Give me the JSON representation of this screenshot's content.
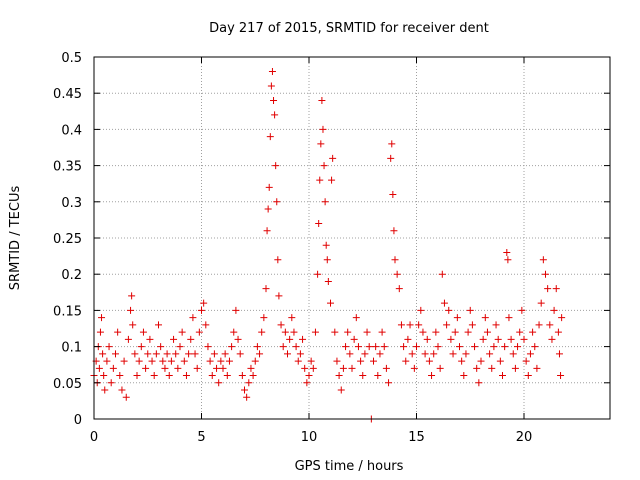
{
  "chart_data": {
    "type": "scatter",
    "title": "Day 217 of 2015, SRMTID for receiver dent",
    "xlabel": "GPS time / hours",
    "ylabel": "SRMTID / TECUs",
    "xlim": [
      0,
      24
    ],
    "ylim": [
      0,
      0.5
    ],
    "x_ticks": [
      0,
      5,
      10,
      15,
      20
    ],
    "x_tick_labels": [
      "0",
      "5",
      "10",
      "15",
      "20"
    ],
    "y_ticks": [
      0,
      0.05,
      0.1,
      0.15,
      0.2,
      0.25,
      0.3,
      0.35,
      0.4,
      0.45,
      0.5
    ],
    "y_tick_labels": [
      "0",
      "0.05",
      "0.1",
      "0.15",
      "0.2",
      "0.25",
      "0.3",
      "0.35",
      "0.4",
      "0.45",
      "0.5"
    ],
    "grid": true,
    "marker": "plus",
    "color": "#e00000",
    "series": [
      {
        "name": "SRMTID",
        "points": [
          [
            0.0,
            0.06
          ],
          [
            0.1,
            0.08
          ],
          [
            0.15,
            0.05
          ],
          [
            0.2,
            0.1
          ],
          [
            0.25,
            0.07
          ],
          [
            0.3,
            0.12
          ],
          [
            0.35,
            0.14
          ],
          [
            0.4,
            0.09
          ],
          [
            0.45,
            0.06
          ],
          [
            0.5,
            0.04
          ],
          [
            0.6,
            0.08
          ],
          [
            0.7,
            0.1
          ],
          [
            0.8,
            0.05
          ],
          [
            0.9,
            0.07
          ],
          [
            1.0,
            0.09
          ],
          [
            1.1,
            0.12
          ],
          [
            1.2,
            0.06
          ],
          [
            1.3,
            0.04
          ],
          [
            1.4,
            0.08
          ],
          [
            1.5,
            0.03
          ],
          [
            1.6,
            0.11
          ],
          [
            1.7,
            0.15
          ],
          [
            1.75,
            0.17
          ],
          [
            1.8,
            0.13
          ],
          [
            1.9,
            0.09
          ],
          [
            2.0,
            0.06
          ],
          [
            2.1,
            0.08
          ],
          [
            2.2,
            0.1
          ],
          [
            2.3,
            0.12
          ],
          [
            2.4,
            0.07
          ],
          [
            2.5,
            0.09
          ],
          [
            2.6,
            0.11
          ],
          [
            2.7,
            0.08
          ],
          [
            2.8,
            0.06
          ],
          [
            2.9,
            0.09
          ],
          [
            3.0,
            0.13
          ],
          [
            3.1,
            0.1
          ],
          [
            3.2,
            0.08
          ],
          [
            3.3,
            0.07
          ],
          [
            3.4,
            0.09
          ],
          [
            3.5,
            0.06
          ],
          [
            3.6,
            0.08
          ],
          [
            3.7,
            0.11
          ],
          [
            3.8,
            0.09
          ],
          [
            3.9,
            0.07
          ],
          [
            4.0,
            0.1
          ],
          [
            4.1,
            0.12
          ],
          [
            4.2,
            0.08
          ],
          [
            4.3,
            0.06
          ],
          [
            4.4,
            0.09
          ],
          [
            4.5,
            0.11
          ],
          [
            4.6,
            0.14
          ],
          [
            4.7,
            0.09
          ],
          [
            4.8,
            0.07
          ],
          [
            4.9,
            0.12
          ],
          [
            5.0,
            0.15
          ],
          [
            5.1,
            0.16
          ],
          [
            5.2,
            0.13
          ],
          [
            5.3,
            0.1
          ],
          [
            5.4,
            0.08
          ],
          [
            5.5,
            0.06
          ],
          [
            5.6,
            0.09
          ],
          [
            5.7,
            0.07
          ],
          [
            5.8,
            0.05
          ],
          [
            5.9,
            0.08
          ],
          [
            6.0,
            0.07
          ],
          [
            6.1,
            0.09
          ],
          [
            6.2,
            0.06
          ],
          [
            6.3,
            0.08
          ],
          [
            6.4,
            0.1
          ],
          [
            6.5,
            0.12
          ],
          [
            6.6,
            0.15
          ],
          [
            6.7,
            0.11
          ],
          [
            6.8,
            0.09
          ],
          [
            6.9,
            0.06
          ],
          [
            7.0,
            0.04
          ],
          [
            7.1,
            0.03
          ],
          [
            7.2,
            0.05
          ],
          [
            7.3,
            0.07
          ],
          [
            7.4,
            0.06
          ],
          [
            7.5,
            0.08
          ],
          [
            7.6,
            0.1
          ],
          [
            7.7,
            0.09
          ],
          [
            7.8,
            0.12
          ],
          [
            7.9,
            0.14
          ],
          [
            8.0,
            0.18
          ],
          [
            8.05,
            0.26
          ],
          [
            8.1,
            0.29
          ],
          [
            8.15,
            0.32
          ],
          [
            8.2,
            0.39
          ],
          [
            8.25,
            0.46
          ],
          [
            8.3,
            0.48
          ],
          [
            8.35,
            0.44
          ],
          [
            8.4,
            0.42
          ],
          [
            8.45,
            0.35
          ],
          [
            8.5,
            0.3
          ],
          [
            8.55,
            0.22
          ],
          [
            8.6,
            0.17
          ],
          [
            8.7,
            0.13
          ],
          [
            8.8,
            0.1
          ],
          [
            8.9,
            0.12
          ],
          [
            9.0,
            0.09
          ],
          [
            9.1,
            0.11
          ],
          [
            9.2,
            0.14
          ],
          [
            9.3,
            0.12
          ],
          [
            9.4,
            0.1
          ],
          [
            9.5,
            0.08
          ],
          [
            9.6,
            0.09
          ],
          [
            9.7,
            0.11
          ],
          [
            9.8,
            0.07
          ],
          [
            9.9,
            0.05
          ],
          [
            10.0,
            0.06
          ],
          [
            10.1,
            0.08
          ],
          [
            10.2,
            0.07
          ],
          [
            10.3,
            0.12
          ],
          [
            10.4,
            0.2
          ],
          [
            10.45,
            0.27
          ],
          [
            10.5,
            0.33
          ],
          [
            10.55,
            0.38
          ],
          [
            10.6,
            0.44
          ],
          [
            10.65,
            0.4
          ],
          [
            10.7,
            0.35
          ],
          [
            10.75,
            0.3
          ],
          [
            10.8,
            0.24
          ],
          [
            10.85,
            0.22
          ],
          [
            10.9,
            0.19
          ],
          [
            11.0,
            0.16
          ],
          [
            11.05,
            0.33
          ],
          [
            11.1,
            0.36
          ],
          [
            11.2,
            0.12
          ],
          [
            11.3,
            0.08
          ],
          [
            11.4,
            0.06
          ],
          [
            11.5,
            0.04
          ],
          [
            11.6,
            0.07
          ],
          [
            11.7,
            0.1
          ],
          [
            11.8,
            0.12
          ],
          [
            11.9,
            0.09
          ],
          [
            12.0,
            0.07
          ],
          [
            12.1,
            0.11
          ],
          [
            12.2,
            0.14
          ],
          [
            12.3,
            0.1
          ],
          [
            12.4,
            0.08
          ],
          [
            12.5,
            0.06
          ],
          [
            12.6,
            0.09
          ],
          [
            12.7,
            0.12
          ],
          [
            12.8,
            0.1
          ],
          [
            12.9,
            0.0
          ],
          [
            13.0,
            0.08
          ],
          [
            13.1,
            0.1
          ],
          [
            13.2,
            0.06
          ],
          [
            13.3,
            0.09
          ],
          [
            13.4,
            0.12
          ],
          [
            13.5,
            0.1
          ],
          [
            13.6,
            0.07
          ],
          [
            13.7,
            0.05
          ],
          [
            13.8,
            0.36
          ],
          [
            13.85,
            0.38
          ],
          [
            13.9,
            0.31
          ],
          [
            13.95,
            0.26
          ],
          [
            14.0,
            0.22
          ],
          [
            14.1,
            0.2
          ],
          [
            14.2,
            0.18
          ],
          [
            14.3,
            0.13
          ],
          [
            14.4,
            0.1
          ],
          [
            14.5,
            0.08
          ],
          [
            14.6,
            0.11
          ],
          [
            14.7,
            0.13
          ],
          [
            14.8,
            0.09
          ],
          [
            14.9,
            0.07
          ],
          [
            15.0,
            0.1
          ],
          [
            15.1,
            0.13
          ],
          [
            15.2,
            0.15
          ],
          [
            15.3,
            0.12
          ],
          [
            15.4,
            0.09
          ],
          [
            15.5,
            0.11
          ],
          [
            15.6,
            0.08
          ],
          [
            15.7,
            0.06
          ],
          [
            15.8,
            0.09
          ],
          [
            15.9,
            0.12
          ],
          [
            16.0,
            0.1
          ],
          [
            16.1,
            0.07
          ],
          [
            16.2,
            0.2
          ],
          [
            16.3,
            0.16
          ],
          [
            16.4,
            0.13
          ],
          [
            16.5,
            0.15
          ],
          [
            16.6,
            0.11
          ],
          [
            16.7,
            0.09
          ],
          [
            16.8,
            0.12
          ],
          [
            16.9,
            0.14
          ],
          [
            17.0,
            0.1
          ],
          [
            17.1,
            0.08
          ],
          [
            17.2,
            0.06
          ],
          [
            17.3,
            0.09
          ],
          [
            17.4,
            0.12
          ],
          [
            17.5,
            0.15
          ],
          [
            17.6,
            0.13
          ],
          [
            17.7,
            0.1
          ],
          [
            17.8,
            0.07
          ],
          [
            17.9,
            0.05
          ],
          [
            18.0,
            0.08
          ],
          [
            18.1,
            0.11
          ],
          [
            18.2,
            0.14
          ],
          [
            18.3,
            0.12
          ],
          [
            18.4,
            0.09
          ],
          [
            18.5,
            0.07
          ],
          [
            18.6,
            0.1
          ],
          [
            18.7,
            0.13
          ],
          [
            18.8,
            0.11
          ],
          [
            18.9,
            0.08
          ],
          [
            19.0,
            0.06
          ],
          [
            19.1,
            0.1
          ],
          [
            19.2,
            0.23
          ],
          [
            19.25,
            0.22
          ],
          [
            19.3,
            0.14
          ],
          [
            19.4,
            0.11
          ],
          [
            19.5,
            0.09
          ],
          [
            19.6,
            0.07
          ],
          [
            19.7,
            0.1
          ],
          [
            19.8,
            0.12
          ],
          [
            19.9,
            0.15
          ],
          [
            20.0,
            0.11
          ],
          [
            20.1,
            0.08
          ],
          [
            20.2,
            0.06
          ],
          [
            20.3,
            0.09
          ],
          [
            20.4,
            0.12
          ],
          [
            20.5,
            0.1
          ],
          [
            20.6,
            0.07
          ],
          [
            20.7,
            0.13
          ],
          [
            20.8,
            0.16
          ],
          [
            20.9,
            0.22
          ],
          [
            21.0,
            0.2
          ],
          [
            21.1,
            0.18
          ],
          [
            21.2,
            0.13
          ],
          [
            21.3,
            0.11
          ],
          [
            21.4,
            0.15
          ],
          [
            21.5,
            0.18
          ],
          [
            21.6,
            0.12
          ],
          [
            21.65,
            0.09
          ],
          [
            21.7,
            0.06
          ],
          [
            21.75,
            0.14
          ]
        ]
      }
    ]
  }
}
